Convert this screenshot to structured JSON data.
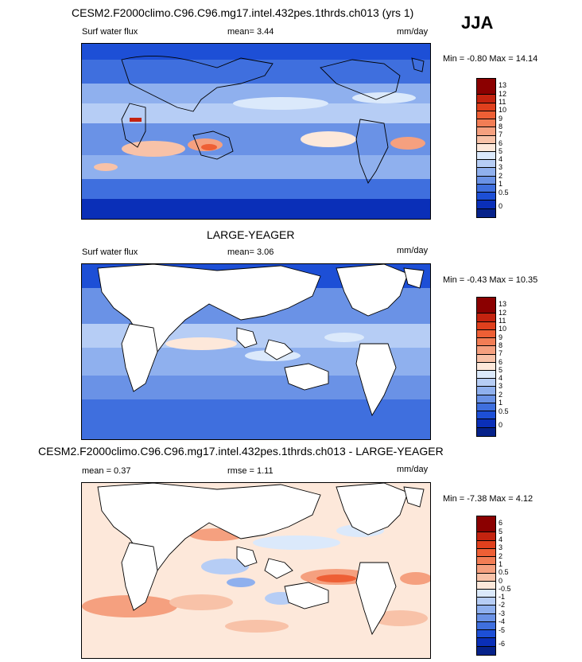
{
  "season": "JJA",
  "panels": [
    {
      "title": "CESM2.F2000climo.C96.C96.mg17.intel.432pes.1thrds.ch013 (yrs 1)",
      "left_label": "Surf water flux",
      "mean_text": "mean=   3.44",
      "units": "mm/day",
      "minmax": "Min =  -0.80 Max =  14.14",
      "levels": [
        "13",
        "12",
        "11",
        "10",
        "9",
        "8",
        "7",
        "6",
        "5",
        "4",
        "3",
        "2",
        "1",
        "0.5",
        "0"
      ],
      "colors": [
        "#8b0000",
        "#c4230f",
        "#e0401d",
        "#ee5f35",
        "#f27d55",
        "#f5a07f",
        "#f8c2a8",
        "#fde8da",
        "#dbe9fb",
        "#b6cdf5",
        "#8fb0ee",
        "#6a92e6",
        "#3f6fde",
        "#1d4fd6",
        "#0a2fb8",
        "#06228a"
      ]
    },
    {
      "title": "LARGE-YEAGER",
      "left_label": "Surf water flux",
      "mean_text": "mean=   3.06",
      "units": "mm/day",
      "minmax": "Min =  -0.43 Max =  10.35",
      "levels": [
        "13",
        "12",
        "11",
        "10",
        "9",
        "8",
        "7",
        "6",
        "5",
        "4",
        "3",
        "2",
        "1",
        "0.5",
        "0"
      ],
      "colors": [
        "#8b0000",
        "#c4230f",
        "#e0401d",
        "#ee5f35",
        "#f27d55",
        "#f5a07f",
        "#f8c2a8",
        "#fde8da",
        "#dbe9fb",
        "#b6cdf5",
        "#8fb0ee",
        "#6a92e6",
        "#3f6fde",
        "#1d4fd6",
        "#0a2fb8",
        "#06228a"
      ]
    },
    {
      "title": "CESM2.F2000climo.C96.C96.mg17.intel.432pes.1thrds.ch013 - LARGE-YEAGER",
      "left_label": "mean =   0.37",
      "mid_label": "rmse =   1.11",
      "units": "mm/day",
      "minmax": "Min =  -7.38 Max =   4.12",
      "levels": [
        "6",
        "5",
        "4",
        "3",
        "2",
        "1",
        "0.5",
        "0",
        "-0.5",
        "-1",
        "-2",
        "-3",
        "-4",
        "-5",
        "-6"
      ],
      "colors": [
        "#8b0000",
        "#c4230f",
        "#e0401d",
        "#ee5f35",
        "#f27d55",
        "#f5a07f",
        "#f8c2a8",
        "#fde8da",
        "#dbe9fb",
        "#b6cdf5",
        "#8fb0ee",
        "#6a92e6",
        "#3f6fde",
        "#1d4fd6",
        "#0a2fb8",
        "#06228a"
      ]
    }
  ],
  "chart_data": [
    {
      "type": "heatmap",
      "title": "CESM2.F2000climo.C96.C96.mg17.intel.432pes.1thrds.ch013 (yrs 1)",
      "variable": "Surf water flux",
      "units": "mm/day",
      "mean": 3.44,
      "min": -0.8,
      "max": 14.14,
      "contour_levels": [
        0,
        0.5,
        1,
        2,
        3,
        4,
        5,
        6,
        7,
        8,
        9,
        10,
        11,
        12,
        13
      ],
      "colormap": "blue-white-red"
    },
    {
      "type": "heatmap",
      "title": "LARGE-YEAGER",
      "variable": "Surf water flux",
      "units": "mm/day",
      "mean": 3.06,
      "min": -0.43,
      "max": 10.35,
      "contour_levels": [
        0,
        0.5,
        1,
        2,
        3,
        4,
        5,
        6,
        7,
        8,
        9,
        10,
        11,
        12,
        13
      ],
      "colormap": "blue-white-red",
      "land_masked": true
    },
    {
      "type": "heatmap",
      "title": "CESM2.F2000climo.C96.C96.mg17.intel.432pes.1thrds.ch013 - LARGE-YEAGER",
      "units": "mm/day",
      "mean": 0.37,
      "rmse": 1.11,
      "min": -7.38,
      "max": 4.12,
      "contour_levels": [
        -6,
        -5,
        -4,
        -3,
        -2,
        -1,
        -0.5,
        0,
        0.5,
        1,
        2,
        3,
        4,
        5,
        6
      ],
      "colormap": "blue-white-red",
      "land_masked": true
    }
  ]
}
